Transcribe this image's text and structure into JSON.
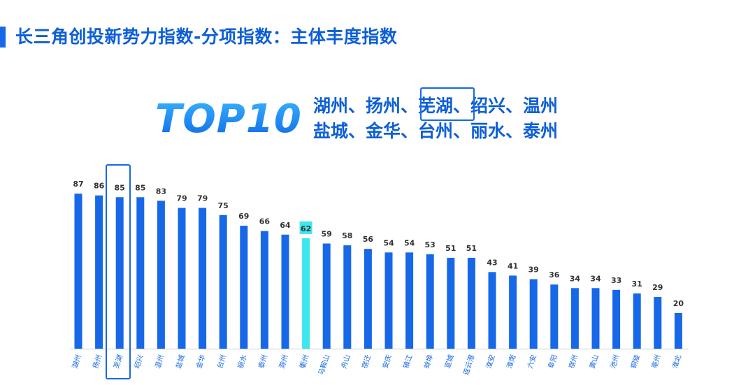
{
  "page_title": "长三角创投新势力指数-分项指数：主体丰度指数",
  "top_badge": "TOP10",
  "top_cities_line1": "湖州、扬州、芜湖、绍兴、温州",
  "top_cities_line2": "盐城、金华、台州、丽水、泰州",
  "colors": {
    "bar": "#1668e8",
    "highlight_bar": "#3ee6ee",
    "title": "#0d5fd6",
    "axis": "#cccccc"
  },
  "chart_data": {
    "type": "bar",
    "categories": [
      "湖州",
      "扬州",
      "芜湖",
      "绍兴",
      "温州",
      "盐城",
      "金华",
      "台州",
      "丽水",
      "泰州",
      "滁州",
      "衢州",
      "马鞍山",
      "舟山",
      "宿迁",
      "安庆",
      "镇江",
      "蚌埠",
      "宣城",
      "连云港",
      "淮安",
      "淮南",
      "六安",
      "阜阳",
      "宿州",
      "黄山",
      "池州",
      "铜陵",
      "亳州",
      "淮北"
    ],
    "values": [
      87,
      86,
      85,
      85,
      83,
      79,
      79,
      75,
      69,
      66,
      64,
      62,
      59,
      58,
      56,
      54,
      54,
      53,
      51,
      51,
      43,
      41,
      39,
      36,
      34,
      34,
      33,
      31,
      29,
      20
    ],
    "highlight_category": "衢州",
    "ylim": [
      0,
      100
    ],
    "grid": false,
    "title": "",
    "xlabel": "",
    "ylabel": ""
  }
}
